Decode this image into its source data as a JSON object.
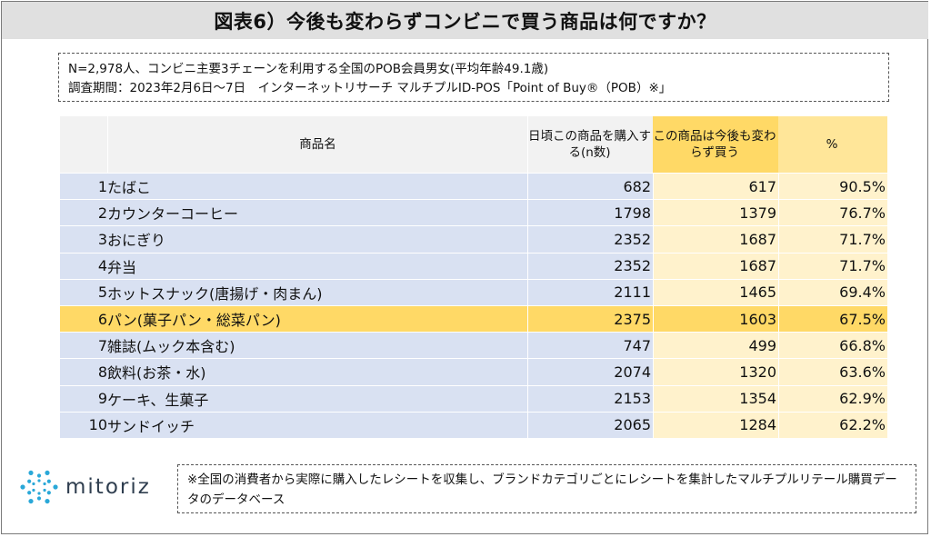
{
  "title": "図表6）今後も変わらずコンビニで買う商品は何ですか？",
  "note": {
    "line1": "N=2,978人、コンビニ主要3チェーンを利用する全国のPOB会員男女(平均年齢49.1歳)",
    "line2": "調査期間：2023年2月6日～7日　インターネットリサーチ マルチプルID-POS「Point of Buy®（POB）※」"
  },
  "chart_data": {
    "type": "table",
    "columns": [
      "商品名",
      "日頃この商品を購入する(n数)",
      "この商品は今後も変わらず買う",
      "%"
    ],
    "rows": [
      {
        "rank": "1",
        "name": "たばこ",
        "n": "682",
        "continue": "617",
        "pct": "90.5%"
      },
      {
        "rank": "2",
        "name": "カウンターコーヒー",
        "n": "1798",
        "continue": "1379",
        "pct": "76.7%"
      },
      {
        "rank": "3",
        "name": "おにぎり",
        "n": "2352",
        "continue": "1687",
        "pct": "71.7%"
      },
      {
        "rank": "4",
        "name": "弁当",
        "n": "2352",
        "continue": "1687",
        "pct": "71.7%"
      },
      {
        "rank": "5",
        "name": "ホットスナック(唐揚げ・肉まん)",
        "n": "2111",
        "continue": "1465",
        "pct": "69.4%"
      },
      {
        "rank": "6",
        "name": "パン(菓子パン・総菜パン)",
        "n": "2375",
        "continue": "1603",
        "pct": "67.5%"
      },
      {
        "rank": "7",
        "name": "雑誌(ムック本含む)",
        "n": "747",
        "continue": "499",
        "pct": "66.8%"
      },
      {
        "rank": "8",
        "name": "飲料(お茶・水)",
        "n": "2074",
        "continue": "1320",
        "pct": "63.6%"
      },
      {
        "rank": "9",
        "name": "ケーキ、生菓子",
        "n": "2153",
        "continue": "1354",
        "pct": "62.9%"
      },
      {
        "rank": "10",
        "name": "サンドイッチ",
        "n": "2065",
        "continue": "1284",
        "pct": "62.2%"
      }
    ],
    "highlight_rank": "6"
  },
  "header": {
    "name": "商品名",
    "n": "日頃この商品を購入する(n数)",
    "continue": "この商品は今後も変わらず買う",
    "pct": "%"
  },
  "logo": {
    "text": "mitoriz",
    "icon": "sun-burst-icon",
    "color": "#2aa8d8"
  },
  "footnote": "※全国の消費者から実際に購入したレシートを収集し、ブランドカテゴリごとにレシートを集計したマルチプルリテール購買データのデータベース"
}
